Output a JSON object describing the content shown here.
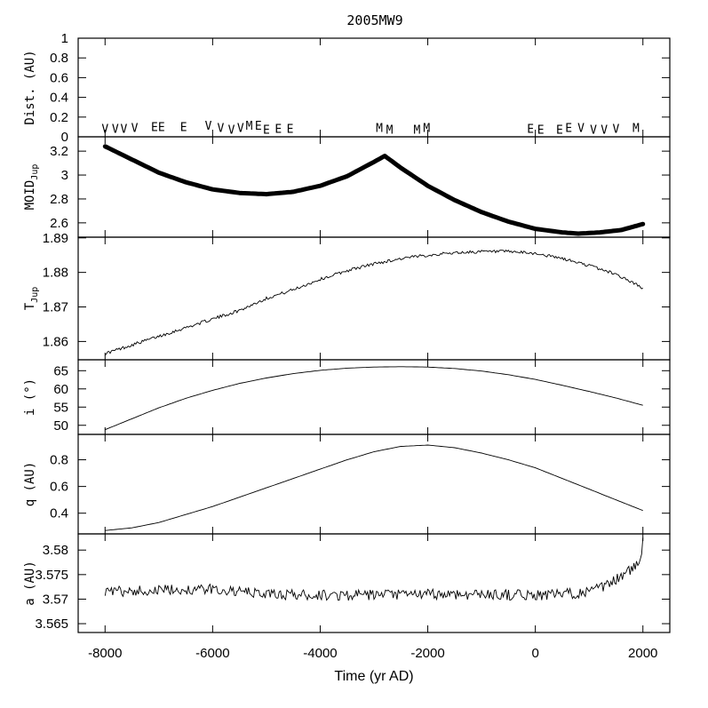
{
  "chart_data": {
    "type": "line",
    "title": "2005MW9",
    "xlabel": "Time (yr AD)",
    "xlim": [
      -8500,
      2500
    ],
    "xticks": [
      -8000,
      -6000,
      -4000,
      -2000,
      0,
      2000
    ],
    "xtick_labels": [
      "-8000",
      "-6000",
      "-4000",
      "-2000",
      "0",
      "2000"
    ],
    "panels": [
      {
        "id": "dist",
        "ylabel": "Dist. (AU)",
        "ylim": [
          0,
          1
        ],
        "yticks": [
          0,
          0.2,
          0.4,
          0.6,
          0.8,
          1
        ],
        "ytick_labels": [
          "0",
          "0.2",
          "0.4",
          "0.6",
          "0.8",
          "1"
        ],
        "encounters": [
          {
            "x": -8000,
            "y": 0.04,
            "label": "V"
          },
          {
            "x": -7810,
            "y": 0.04,
            "label": "V"
          },
          {
            "x": -7650,
            "y": 0.04,
            "label": "V"
          },
          {
            "x": -7450,
            "y": 0.05,
            "label": "V"
          },
          {
            "x": -7080,
            "y": 0.06,
            "label": "E"
          },
          {
            "x": -6950,
            "y": 0.06,
            "label": "E"
          },
          {
            "x": -6540,
            "y": 0.06,
            "label": "E"
          },
          {
            "x": -6080,
            "y": 0.07,
            "label": "V"
          },
          {
            "x": -5850,
            "y": 0.05,
            "label": "V"
          },
          {
            "x": -5650,
            "y": 0.03,
            "label": "V"
          },
          {
            "x": -5480,
            "y": 0.05,
            "label": "V"
          },
          {
            "x": -5320,
            "y": 0.07,
            "label": "M"
          },
          {
            "x": -5150,
            "y": 0.07,
            "label": "E"
          },
          {
            "x": -5000,
            "y": 0.03,
            "label": "E"
          },
          {
            "x": -4780,
            "y": 0.04,
            "label": "E"
          },
          {
            "x": -4560,
            "y": 0.04,
            "label": "E"
          },
          {
            "x": -2900,
            "y": 0.05,
            "label": "M"
          },
          {
            "x": -2710,
            "y": 0.03,
            "label": "M"
          },
          {
            "x": -2200,
            "y": 0.03,
            "label": "M"
          },
          {
            "x": -2020,
            "y": 0.05,
            "label": "M"
          },
          {
            "x": -90,
            "y": 0.04,
            "label": "E"
          },
          {
            "x": 100,
            "y": 0.03,
            "label": "E"
          },
          {
            "x": 450,
            "y": 0.03,
            "label": "E"
          },
          {
            "x": 620,
            "y": 0.05,
            "label": "E"
          },
          {
            "x": 850,
            "y": 0.05,
            "label": "V"
          },
          {
            "x": 1080,
            "y": 0.03,
            "label": "V"
          },
          {
            "x": 1280,
            "y": 0.03,
            "label": "V"
          },
          {
            "x": 1500,
            "y": 0.04,
            "label": "V"
          },
          {
            "x": 1870,
            "y": 0.05,
            "label": "M"
          }
        ]
      },
      {
        "id": "moid",
        "ylabel": "MOID",
        "ylabel_sub": "Jup",
        "ylim": [
          2.48,
          3.32
        ],
        "yticks": [
          2.6,
          2.8,
          3,
          3.2
        ],
        "ytick_labels": [
          "2.6",
          "2.8",
          "3",
          "3.2"
        ],
        "x": [
          -8000,
          -7500,
          -7000,
          -6500,
          -6000,
          -5500,
          -5000,
          -4500,
          -4000,
          -3500,
          -3000,
          -2800,
          -2500,
          -2000,
          -1500,
          -1000,
          -500,
          0,
          500,
          800,
          1200,
          1600,
          2000
        ],
        "y": [
          3.24,
          3.13,
          3.02,
          2.94,
          2.88,
          2.85,
          2.84,
          2.86,
          2.91,
          2.99,
          3.11,
          3.16,
          3.06,
          2.91,
          2.79,
          2.69,
          2.61,
          2.55,
          2.52,
          2.51,
          2.52,
          2.54,
          2.59
        ]
      },
      {
        "id": "tjup",
        "ylabel": "T",
        "ylabel_sub": "Jup",
        "ylim": [
          1.8547,
          1.8902
        ],
        "yticks": [
          1.86,
          1.87,
          1.88,
          1.89
        ],
        "ytick_labels": [
          "1.86",
          "1.87",
          "1.88",
          "1.89"
        ],
        "x": [
          -8000,
          -7500,
          -7000,
          -6500,
          -6000,
          -5500,
          -5000,
          -4500,
          -4000,
          -3500,
          -3000,
          -2500,
          -2000,
          -1500,
          -1000,
          -500,
          0,
          500,
          1000,
          1500,
          2000
        ],
        "y": [
          1.8565,
          1.859,
          1.8615,
          1.864,
          1.8665,
          1.869,
          1.8725,
          1.875,
          1.878,
          1.8805,
          1.8825,
          1.884,
          1.885,
          1.8857,
          1.886,
          1.886,
          1.8855,
          1.884,
          1.882,
          1.8795,
          1.8755
        ],
        "noise": 0.0009
      },
      {
        "id": "incl",
        "ylabel": "i (°)",
        "ylim": [
          47.5,
          68
        ],
        "yticks": [
          50,
          55,
          60,
          65
        ],
        "ytick_labels": [
          "50",
          "55",
          "60",
          "65"
        ],
        "x": [
          -8000,
          -7500,
          -7000,
          -6500,
          -6000,
          -5500,
          -5000,
          -4500,
          -4000,
          -3500,
          -3000,
          -2500,
          -2000,
          -1500,
          -1000,
          -500,
          0,
          500,
          1000,
          1500,
          2000
        ],
        "y": [
          48.8,
          51.8,
          54.8,
          57.4,
          59.6,
          61.5,
          63.0,
          64.2,
          65.1,
          65.7,
          66.0,
          66.1,
          66.0,
          65.6,
          64.9,
          63.9,
          62.6,
          61.0,
          59.3,
          57.5,
          55.5
        ]
      },
      {
        "id": "q",
        "ylabel": "q (AU)",
        "ylim": [
          0.245,
          0.99
        ],
        "yticks": [
          0.4,
          0.6,
          0.8
        ],
        "ytick_labels": [
          "0.4",
          "0.6",
          "0.8"
        ],
        "x": [
          -8000,
          -7500,
          -7000,
          -6500,
          -6000,
          -5500,
          -5000,
          -4500,
          -4000,
          -3500,
          -3000,
          -2500,
          -2000,
          -1500,
          -1000,
          -500,
          0,
          500,
          1000,
          1500,
          2000
        ],
        "y": [
          0.27,
          0.29,
          0.33,
          0.39,
          0.45,
          0.52,
          0.59,
          0.66,
          0.73,
          0.8,
          0.86,
          0.9,
          0.91,
          0.89,
          0.85,
          0.8,
          0.74,
          0.66,
          0.58,
          0.5,
          0.42
        ]
      },
      {
        "id": "a",
        "ylabel": "a (AU)",
        "ylim": [
          3.5632,
          3.5833
        ],
        "yticks": [
          3.565,
          3.57,
          3.575,
          3.58
        ],
        "ytick_labels": [
          "3.565",
          "3.57",
          "3.575",
          "3.58"
        ],
        "x": [
          -8000,
          -7000,
          -6000,
          -5000,
          -4000,
          -3000,
          -2000,
          -1000,
          0,
          500,
          1000,
          1300,
          1500,
          1700,
          1850,
          1950,
          2000
        ],
        "y": [
          3.5715,
          3.5718,
          3.572,
          3.571,
          3.5708,
          3.5708,
          3.571,
          3.571,
          3.5708,
          3.571,
          3.5715,
          3.5725,
          3.574,
          3.5755,
          3.5765,
          3.5775,
          3.5825
        ],
        "noise": 0.0022
      }
    ]
  }
}
